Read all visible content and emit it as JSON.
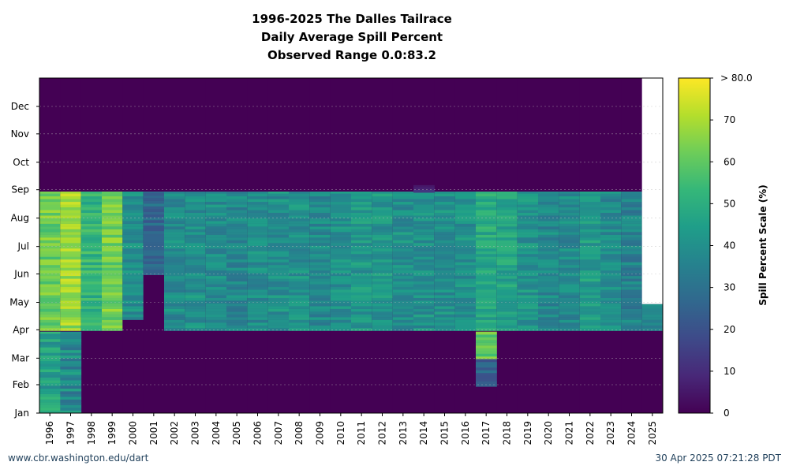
{
  "colors": {
    "background": "#ffffff",
    "footer_text": "#1f3f5a",
    "no_data": "#ffffff",
    "viridis": [
      "#440154",
      "#482878",
      "#3e4a89",
      "#31688e",
      "#26828e",
      "#1f9e89",
      "#35b779",
      "#6dcd59",
      "#b4de2c",
      "#fde725"
    ]
  },
  "chart_data": {
    "type": "heatmap",
    "title": [
      "1996-2025 The Dalles Tailrace",
      "Daily Average Spill Percent",
      "Observed Range 0.0:83.2"
    ],
    "x": [
      "1996",
      "1997",
      "1998",
      "1999",
      "2000",
      "2001",
      "2002",
      "2003",
      "2004",
      "2005",
      "2006",
      "2007",
      "2008",
      "2009",
      "2010",
      "2011",
      "2012",
      "2013",
      "2014",
      "2015",
      "2016",
      "2017",
      "2018",
      "2019",
      "2020",
      "2021",
      "2022",
      "2023",
      "2024",
      "2025"
    ],
    "y_ticks": [
      "Jan",
      "Feb",
      "Mar",
      "Apr",
      "May",
      "Jun",
      "Jul",
      "Aug",
      "Sep",
      "Oct",
      "Nov",
      "Dec"
    ],
    "colorbar": {
      "label": "Spill Percent Scale (%)",
      "ticks": [
        0,
        10,
        20,
        30,
        40,
        50,
        60,
        70
      ],
      "max_label": "> 80.0",
      "range": [
        0,
        80
      ]
    },
    "grid": true,
    "season_start_day": {
      "1996": 91,
      "1997": 91,
      "1998": 91,
      "1999": 91,
      "2000": 103,
      "2001": 152,
      "2002": 91,
      "2003": 91,
      "2004": 91,
      "2005": 91,
      "2006": 91,
      "2007": 91,
      "2008": 91,
      "2009": 91,
      "2010": 91,
      "2011": 91,
      "2012": 91,
      "2013": 91,
      "2014": 91,
      "2015": 91,
      "2016": 91,
      "2017": 91,
      "2018": 91,
      "2019": 91,
      "2020": 91,
      "2021": 91,
      "2022": 91,
      "2023": 91,
      "2024": 91,
      "2025": 91
    },
    "season_end_day": 243,
    "last_observed_day_2025": 120,
    "season_mean_percent": {
      "1996": 62,
      "1997": 68,
      "1998": 52,
      "1999": 63,
      "2000": 40,
      "2001": 28,
      "2002": 39,
      "2003": 40,
      "2004": 39,
      "2005": 37,
      "2006": 39,
      "2007": 40,
      "2008": 40,
      "2009": 38,
      "2010": 40,
      "2011": 42,
      "2012": 42,
      "2013": 40,
      "2014": 40,
      "2015": 40,
      "2016": 40,
      "2017": 48,
      "2018": 46,
      "2019": 41,
      "2020": 38,
      "2021": 38,
      "2022": 44,
      "2023": 38,
      "2024": 35,
      "2025": 35
    },
    "offseason_patches": [
      {
        "year": "1996",
        "from_day": 1,
        "to_day": 90,
        "percent": 45
      },
      {
        "year": "1997",
        "from_day": 1,
        "to_day": 90,
        "percent": 38
      },
      {
        "year": "2017",
        "from_day": 60,
        "to_day": 90,
        "percent": 58
      },
      {
        "year": "2017",
        "from_day": 30,
        "to_day": 60,
        "percent": 28
      },
      {
        "year": "2014",
        "from_day": 242,
        "to_day": 250,
        "percent": 14
      }
    ]
  },
  "footer": {
    "left": "www.cbr.washington.edu/dart",
    "right": "30 Apr 2025 07:21:28 PDT"
  }
}
